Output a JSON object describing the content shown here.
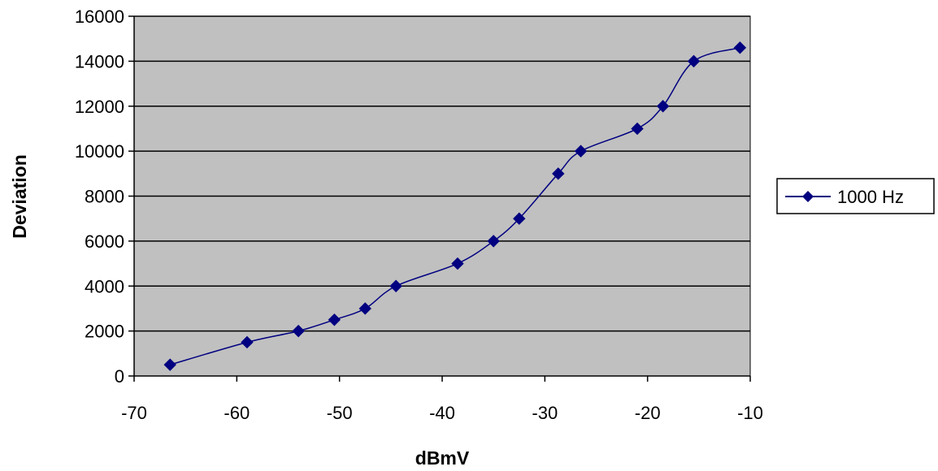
{
  "chart_data": {
    "type": "line",
    "title": "",
    "xlabel": "dBmV",
    "ylabel": "Deviation",
    "xlim": [
      -70,
      -10
    ],
    "ylim": [
      0,
      16000
    ],
    "x_ticks": [
      "-70",
      "-60",
      "-50",
      "-40",
      "-30",
      "-20",
      "-10"
    ],
    "y_ticks": [
      "0",
      "2000",
      "4000",
      "6000",
      "8000",
      "10000",
      "12000",
      "14000",
      "16000"
    ],
    "grid": "horizontal",
    "plot_background": "#c0c0c0",
    "legend_position": "right",
    "series": [
      {
        "name": "1000 Hz",
        "color": "#000080",
        "marker": "diamond",
        "points": [
          {
            "x": -66.5,
            "y": 500
          },
          {
            "x": -59,
            "y": 1500
          },
          {
            "x": -54,
            "y": 2000
          },
          {
            "x": -50.5,
            "y": 2500
          },
          {
            "x": -47.5,
            "y": 3000
          },
          {
            "x": -44.5,
            "y": 4000
          },
          {
            "x": -38.5,
            "y": 5000
          },
          {
            "x": -35,
            "y": 6000
          },
          {
            "x": -32.5,
            "y": 7000
          },
          {
            "x": -28.7,
            "y": 9000
          },
          {
            "x": -26.5,
            "y": 10000
          },
          {
            "x": -21,
            "y": 11000
          },
          {
            "x": -18.5,
            "y": 12000
          },
          {
            "x": -15.5,
            "y": 14000
          },
          {
            "x": -11,
            "y": 14600
          }
        ]
      }
    ]
  }
}
